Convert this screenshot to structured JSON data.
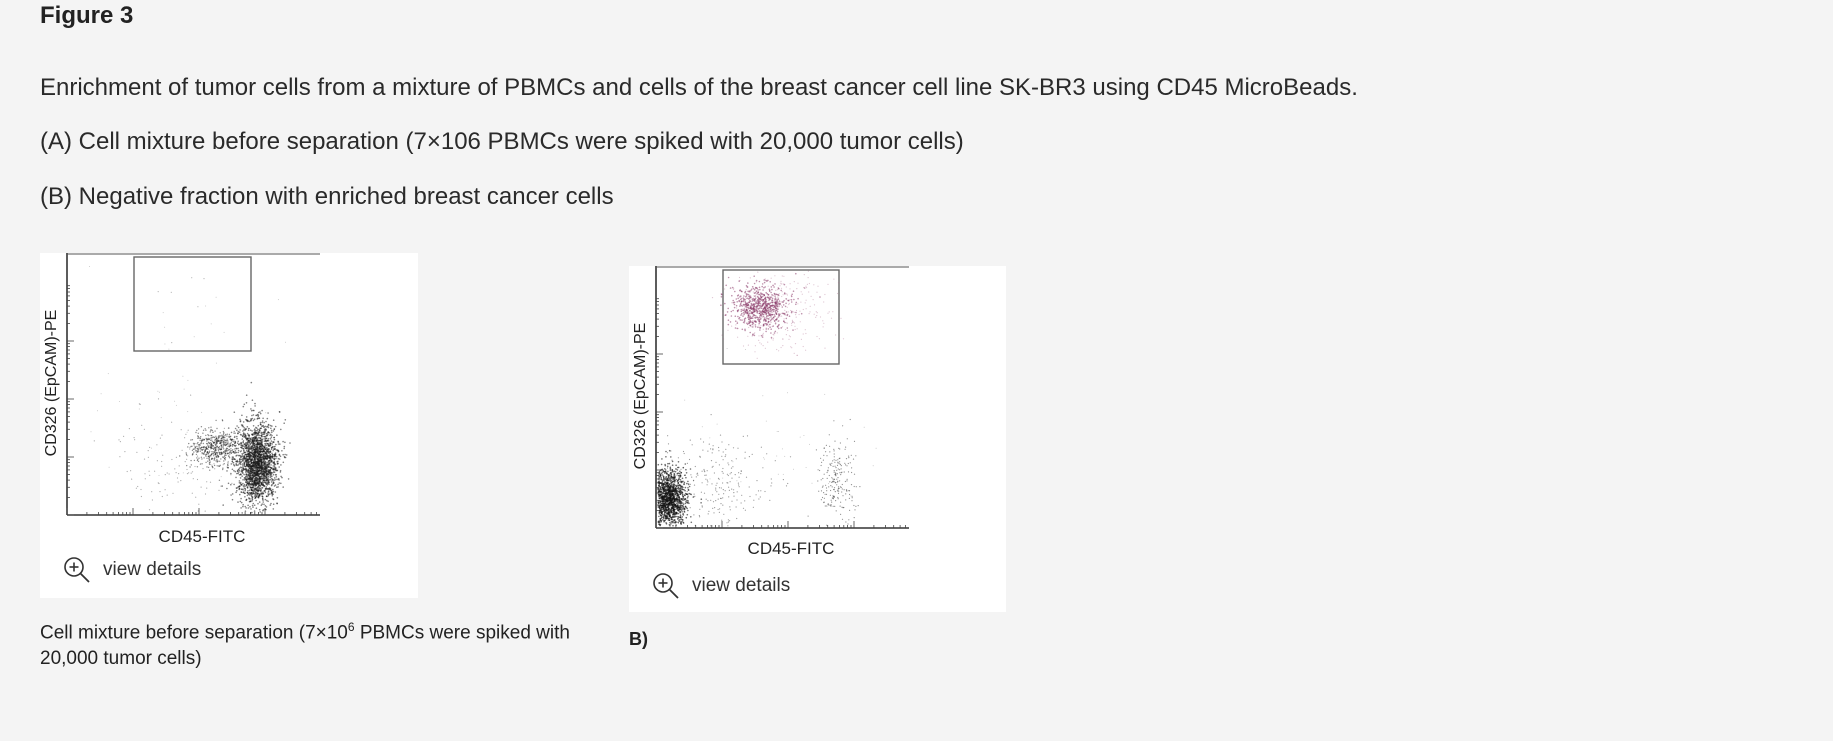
{
  "figure": {
    "title": "Figure 3",
    "description_lines": [
      "Enrichment of tumor cells from a mixture of PBMCs and cells of the breast cancer cell line SK-BR3 using CD45 MicroBeads.",
      "(A) Cell mixture before separation (7×106 PBMCs were spiked with 20,000 tumor cells)",
      "(B) Negative fraction with enriched breast cancer cells"
    ]
  },
  "panels": [
    {
      "id": "A",
      "x_axis_label": "CD45-FITC",
      "y_axis_label": "CD326 (EpCAM)-PE",
      "view_details": "view details",
      "caption_before": "Cell mixture before separation (7×10",
      "caption_sup": "6",
      "caption_after": " PBMCs were spiked with 20,000 tumor cells)"
    },
    {
      "id": "B",
      "x_axis_label": "CD45-FITC",
      "y_axis_label": "CD326 (EpCAM)-PE",
      "view_details": "view details",
      "caption": "B)"
    }
  ],
  "colors": {
    "background": "#f4f4f4",
    "points_dark": "#222222",
    "points_magenta": "#a04a7a",
    "gate": "#555555"
  }
}
